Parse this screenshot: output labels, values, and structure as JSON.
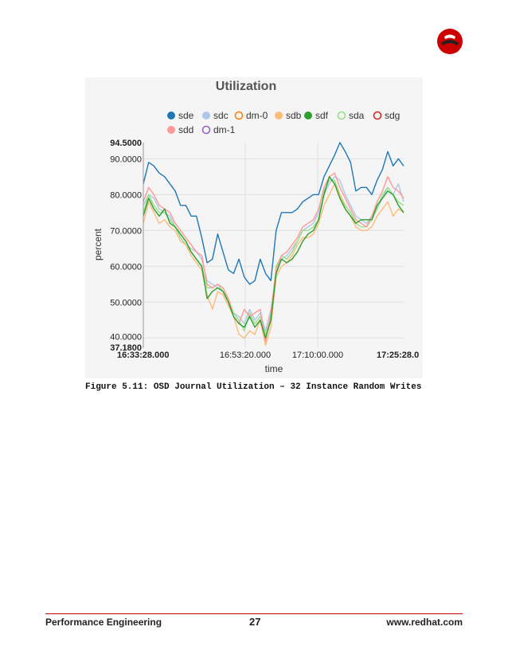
{
  "colors": {
    "accent": "#cc0000",
    "footer_rule": "#c00000"
  },
  "logo": {
    "icon": "redhat-shadowman-icon"
  },
  "chart_data": {
    "type": "line",
    "title": "Utilization",
    "xlabel": "time",
    "ylabel": "percent",
    "ylim": [
      37.18,
      94.5
    ],
    "y_ticks": [
      "37.1800",
      "40.0000",
      "50.0000",
      "60.0000",
      "70.0000",
      "80.0000",
      "90.0000",
      "94.5000"
    ],
    "x_ticks": [
      "16:33:28.000",
      "16:53:20.000",
      "17:10:00.000",
      "17:25:28.0"
    ],
    "x_start": "16:33:28",
    "x_end": "17:25:28",
    "grid": true,
    "legend_position": "top",
    "series": [
      {
        "name": "sde",
        "color": "#1f77b4",
        "marker": "filled",
        "values": [
          83,
          89,
          88,
          86,
          85,
          83,
          81,
          77,
          77,
          74,
          74,
          68,
          61,
          62,
          69,
          64,
          59,
          58,
          62,
          57,
          55,
          56,
          62,
          58,
          56,
          70,
          75,
          75,
          75,
          76,
          78,
          79,
          80,
          80,
          85,
          88,
          91,
          94.5,
          92,
          89,
          81,
          82,
          82,
          80,
          84,
          87,
          92,
          88,
          90,
          88
        ]
      },
      {
        "name": "sdc",
        "color": "#aec7e8",
        "marker": "filled",
        "values": [
          77,
          80,
          79,
          76,
          75,
          74,
          71,
          68,
          66,
          65,
          64,
          62,
          56,
          55,
          54,
          53,
          50,
          47,
          46,
          44,
          48,
          45,
          47,
          42,
          48,
          58,
          62,
          63,
          65,
          67,
          70,
          71,
          72,
          75,
          80,
          83,
          85,
          84,
          80,
          77,
          74,
          73,
          72,
          74,
          76,
          79,
          82,
          80,
          83,
          78
        ]
      },
      {
        "name": "dm-0",
        "color": "#ff7f0e",
        "marker": "hollow",
        "values": []
      },
      {
        "name": "sdb",
        "color": "#ffbb78",
        "marker": "filled",
        "values": [
          72,
          78,
          75,
          72,
          73,
          71,
          70,
          67,
          66,
          63,
          61,
          59,
          52,
          48,
          53,
          52,
          49,
          46,
          41,
          40,
          42,
          41,
          45,
          38,
          43,
          57,
          60,
          61,
          63,
          66,
          68,
          68,
          69,
          72,
          77,
          80,
          83,
          80,
          76,
          74,
          71,
          70,
          70,
          71,
          74,
          76,
          78,
          74,
          76,
          75
        ]
      },
      {
        "name": "sdf",
        "color": "#2ca02c",
        "marker": "filled",
        "values": [
          74,
          79,
          76,
          74,
          76,
          72,
          71,
          69,
          67,
          64,
          62,
          60,
          51,
          53,
          54,
          53,
          50,
          46,
          44,
          43,
          46,
          43,
          45,
          40,
          45,
          58,
          62,
          61,
          62,
          64,
          67,
          69,
          70,
          73,
          80,
          85,
          83,
          79,
          76,
          74,
          72,
          73,
          73,
          73,
          77,
          79,
          81,
          80,
          77,
          75
        ]
      },
      {
        "name": "sda",
        "color": "#98df8a",
        "marker": "hollow",
        "values": [
          75,
          80,
          77,
          75,
          75,
          73,
          71,
          68,
          66,
          64,
          62,
          60,
          54,
          54,
          55,
          53,
          51,
          47,
          45,
          42,
          47,
          44,
          46,
          41,
          46,
          60,
          63,
          62,
          64,
          67,
          70,
          70,
          71,
          73,
          81,
          84,
          84,
          80,
          77,
          75,
          72,
          71,
          71,
          73,
          76,
          80,
          82,
          80,
          78,
          77
        ]
      },
      {
        "name": "sdg",
        "color": "#d62728",
        "marker": "hollow",
        "values": []
      },
      {
        "name": "sdd",
        "color": "#ff9896",
        "marker": "filled",
        "values": [
          78,
          82,
          80,
          77,
          76,
          75,
          72,
          70,
          68,
          66,
          64,
          63,
          55,
          54,
          55,
          54,
          51,
          46,
          44,
          48,
          46,
          47,
          48,
          39,
          47,
          59,
          63,
          64,
          66,
          68,
          71,
          72,
          73,
          76,
          82,
          85,
          86,
          82,
          79,
          76,
          73,
          72,
          71,
          74,
          78,
          81,
          85,
          82,
          81,
          79
        ]
      },
      {
        "name": "dm-1",
        "color": "#9467bd",
        "marker": "hollow",
        "values": []
      }
    ]
  },
  "caption": "Figure 5.11: OSD Journal Utilization – 32 Instance Random Writes",
  "footer": {
    "left": "Performance Engineering",
    "page": "27",
    "right": "www.redhat.com"
  }
}
